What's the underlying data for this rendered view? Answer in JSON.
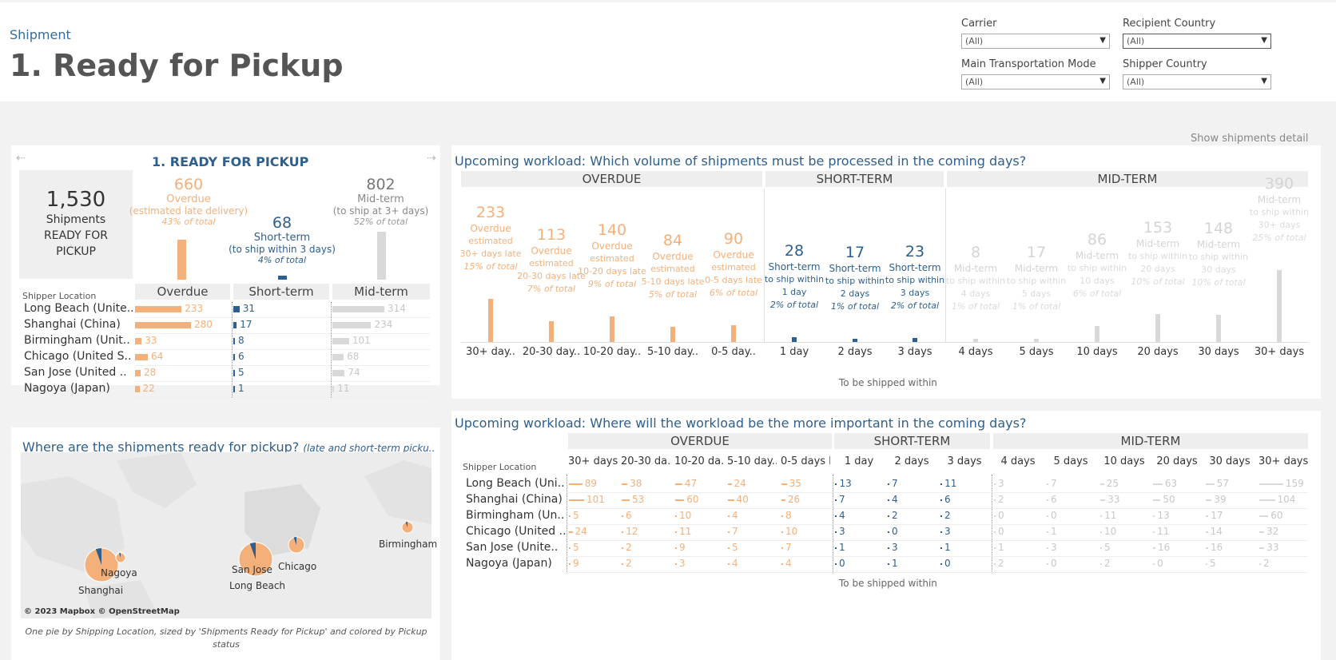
{
  "header": {
    "breadcrumb": "Shipment",
    "title": "1. Ready for Pickup"
  },
  "filters": [
    {
      "label": "Carrier",
      "value": "(All)"
    },
    {
      "label": "Recipient Country",
      "value": "(All)"
    },
    {
      "label": "Main Transportation Mode",
      "value": "(All)"
    },
    {
      "label": "Shipper Country",
      "value": "(All)"
    }
  ],
  "show_detail": "Show shipments detail",
  "colors": {
    "overdue": "#f4b07a",
    "short_term": "#2e5f8e",
    "mid_term": "#d9d9d9",
    "title": "#2e5f8e"
  },
  "kpi": {
    "title": "1. READY FOR PICKUP",
    "total": {
      "value": "1,530",
      "line1": "Shipments",
      "line2": "READY FOR",
      "line3": "PICKUP"
    },
    "overdue": {
      "value": "660",
      "label": "Overdue",
      "sub": "(estimated late delivery)",
      "pct": "43% of total",
      "share": 0.43
    },
    "short_term": {
      "value": "68",
      "label": "Short-term",
      "sub": "(to ship within 3 days)",
      "pct": "4% of total",
      "share": 0.04
    },
    "mid_term": {
      "value": "802",
      "label": "Mid-term",
      "sub": "(to ship at 3+ days)",
      "pct": "52% of total",
      "share": 0.52
    }
  },
  "location_table": {
    "row_header": "Shipper Location",
    "columns": [
      "Overdue",
      "Short-term",
      "Mid-term"
    ],
    "rows": [
      {
        "label": "Long Beach (Unite..",
        "overdue": 233,
        "short": 31,
        "mid": 314
      },
      {
        "label": "Shanghai (China)",
        "overdue": 280,
        "short": 17,
        "mid": 234
      },
      {
        "label": "Birmingham (Unit..",
        "overdue": 33,
        "short": 8,
        "mid": 101
      },
      {
        "label": "Chicago (United S..",
        "overdue": 64,
        "short": 6,
        "mid": 68
      },
      {
        "label": "San Jose (United ..",
        "overdue": 28,
        "short": 5,
        "mid": 74
      },
      {
        "label": "Nagoya (Japan)",
        "overdue": 22,
        "short": 1,
        "mid": 11
      }
    ]
  },
  "map": {
    "title": "Where are the shipments ready for pickup?",
    "subtitle": "(late and short-term picku..",
    "labels": [
      "Nagoya",
      "Shanghai",
      "San Jose",
      "Long Beach",
      "Chicago",
      "Birmingham"
    ],
    "attribution": "© 2023 Mapbox © OpenStreetMap",
    "caption": "One pie by Shipping Location, sized by 'Shipments Ready for Pickup' and colored by Pickup status"
  },
  "workload_chart": {
    "title": "Upcoming workload: Which volume of shipments must be processed in the coming days?",
    "groups": [
      "OVERDUE",
      "SHORT-TERM",
      "MID-TERM"
    ],
    "axis_label": "To be shipped within",
    "bars": [
      {
        "group": "overdue",
        "tick": "30+ day..",
        "value": "233",
        "l1": "Overdue",
        "l2": "estimated",
        "l3": "30+ days late",
        "pct": "15% of total",
        "n": 233
      },
      {
        "group": "overdue",
        "tick": "20-30 day..",
        "value": "113",
        "l1": "Overdue",
        "l2": "estimated",
        "l3": "20-30 days late",
        "pct": "7% of total",
        "n": 113
      },
      {
        "group": "overdue",
        "tick": "10-20 day..",
        "value": "140",
        "l1": "Overdue",
        "l2": "estimated",
        "l3": "10-20 days late",
        "pct": "9% of total",
        "n": 140
      },
      {
        "group": "overdue",
        "tick": "5-10 day..",
        "value": "84",
        "l1": "Overdue",
        "l2": "estimated",
        "l3": "5-10 days late",
        "pct": "5% of total",
        "n": 84
      },
      {
        "group": "overdue",
        "tick": "0-5 day..",
        "value": "90",
        "l1": "Overdue",
        "l2": "estimated",
        "l3": "0-5 days late",
        "pct": "6% of total",
        "n": 90
      },
      {
        "group": "short",
        "tick": "1 day",
        "value": "28",
        "l1": "Short-term",
        "l2": "to ship within",
        "l3": "1 day",
        "pct": "2% of total",
        "n": 28
      },
      {
        "group": "short",
        "tick": "2 days",
        "value": "17",
        "l1": "Short-term",
        "l2": "to ship within",
        "l3": "2 days",
        "pct": "1% of total",
        "n": 17
      },
      {
        "group": "short",
        "tick": "3 days",
        "value": "23",
        "l1": "Short-term",
        "l2": "to ship within",
        "l3": "3 days",
        "pct": "2% of total",
        "n": 23
      },
      {
        "group": "mid",
        "tick": "4 days",
        "value": "8",
        "l1": "Mid-term",
        "l2": "to ship within",
        "l3": "4 days",
        "pct": "1% of total",
        "n": 8
      },
      {
        "group": "mid",
        "tick": "5 days",
        "value": "17",
        "l1": "Mid-term",
        "l2": "to ship within",
        "l3": "5 days",
        "pct": "1% of total",
        "n": 17
      },
      {
        "group": "mid",
        "tick": "10 days",
        "value": "86",
        "l1": "Mid-term",
        "l2": "to ship within",
        "l3": "10 days",
        "pct": "6% of total",
        "n": 86
      },
      {
        "group": "mid",
        "tick": "20 days",
        "value": "153",
        "l1": "Mid-term",
        "l2": "to ship within",
        "l3": "20 days",
        "pct": "10% of total",
        "n": 153
      },
      {
        "group": "mid",
        "tick": "30 days",
        "value": "148",
        "l1": "Mid-term",
        "l2": "to ship within",
        "l3": "30 days",
        "pct": "10% of total",
        "n": 148
      },
      {
        "group": "mid",
        "tick": "30+ days",
        "value": "390",
        "l1": "Mid-term",
        "l2": "to ship within",
        "l3": "30+ days",
        "pct": "25% of total",
        "n": 390
      }
    ]
  },
  "workload_table": {
    "title": "Upcoming workload: Where will the workload be the more important in the coming days?",
    "groups": [
      "OVERDUE",
      "SHORT-TERM",
      "MID-TERM"
    ],
    "row_header": "Shipper Location",
    "axis_label": "To be shipped within",
    "columns": [
      "30+ days ..",
      "20-30 da..",
      "10-20 da..",
      "5-10 day..",
      "0-5 days l..",
      "1 day",
      "2 days",
      "3 days",
      "4 days",
      "5 days",
      "10 days",
      "20 days",
      "30 days",
      "30+ days"
    ],
    "column_groups": [
      "overdue",
      "overdue",
      "overdue",
      "overdue",
      "overdue",
      "short",
      "short",
      "short",
      "mid",
      "mid",
      "mid",
      "mid",
      "mid",
      "mid"
    ],
    "rows": [
      {
        "label": "Long Beach (Uni..",
        "values": [
          89,
          38,
          47,
          24,
          35,
          13,
          7,
          11,
          3,
          7,
          25,
          63,
          57,
          159
        ]
      },
      {
        "label": "Shanghai (China)",
        "values": [
          101,
          53,
          60,
          40,
          26,
          7,
          4,
          6,
          2,
          6,
          33,
          50,
          39,
          104
        ]
      },
      {
        "label": "Birmingham (Un..",
        "values": [
          5,
          6,
          10,
          4,
          8,
          4,
          2,
          2,
          0,
          0,
          11,
          13,
          17,
          60
        ]
      },
      {
        "label": "Chicago (United ..",
        "values": [
          24,
          12,
          11,
          7,
          10,
          3,
          0,
          3,
          0,
          1,
          10,
          11,
          14,
          32
        ]
      },
      {
        "label": "San Jose (Unite..",
        "values": [
          5,
          2,
          9,
          5,
          7,
          1,
          3,
          1,
          1,
          3,
          5,
          16,
          16,
          33
        ]
      },
      {
        "label": "Nagoya (Japan)",
        "values": [
          9,
          2,
          3,
          4,
          4,
          0,
          1,
          0,
          2,
          0,
          2,
          0,
          5,
          2
        ]
      }
    ]
  }
}
